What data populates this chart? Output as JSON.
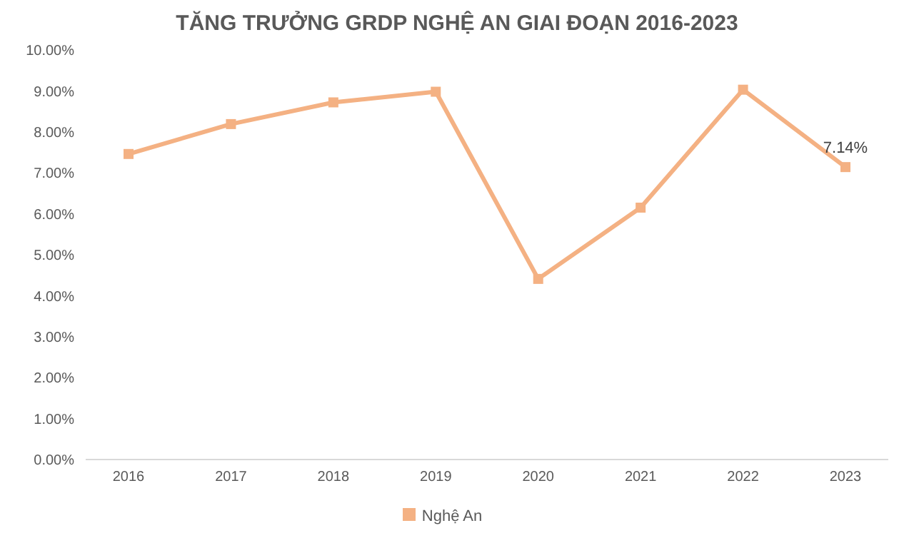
{
  "chart_data": {
    "type": "line",
    "title": "TĂNG TRƯỞNG GRDP NGHỆ AN GIAI ĐOẠN 2016-2023",
    "categories": [
      "2016",
      "2017",
      "2018",
      "2019",
      "2020",
      "2021",
      "2022",
      "2023"
    ],
    "series": [
      {
        "name": "Nghệ An",
        "color": "#f4b183",
        "values": [
          7.46,
          8.19,
          8.72,
          8.98,
          4.41,
          6.15,
          9.03,
          7.14
        ],
        "value_labels": [
          null,
          null,
          null,
          null,
          null,
          null,
          null,
          "7.14%"
        ]
      }
    ],
    "ylim": [
      0,
      10
    ],
    "yticks": [
      {
        "value": 0,
        "label": "0.00%"
      },
      {
        "value": 1,
        "label": "1.00%"
      },
      {
        "value": 2,
        "label": "2.00%"
      },
      {
        "value": 3,
        "label": "3.00%"
      },
      {
        "value": 4,
        "label": "4.00%"
      },
      {
        "value": 5,
        "label": "5.00%"
      },
      {
        "value": 6,
        "label": "6.00%"
      },
      {
        "value": 7,
        "label": "7.00%"
      },
      {
        "value": 8,
        "label": "8.00%"
      },
      {
        "value": 9,
        "label": "9.00%"
      },
      {
        "value": 10,
        "label": "10.00%"
      }
    ],
    "grid": false,
    "legend": "bottom",
    "marker": "square",
    "line_style": "solid"
  }
}
